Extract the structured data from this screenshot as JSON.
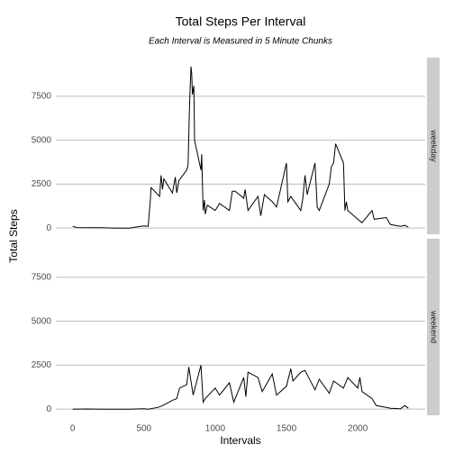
{
  "chart_data": {
    "type": "line",
    "title": "Total Steps Per Interval",
    "subtitle": "Each Interval is Measured in 5 Minute Chunks",
    "xlabel": "Intervals",
    "ylabel": "Total Steps",
    "xlim": [
      -118,
      2473
    ],
    "xticks": [
      0,
      500,
      1000,
      1500,
      2000
    ],
    "ylim": [
      -350,
      9700
    ],
    "yticks": [
      0,
      2500,
      5000,
      7500
    ],
    "grid": true,
    "series": [
      {
        "name": "weekday",
        "color": "#000000",
        "x": [
          0,
          30,
          100,
          200,
          300,
          400,
          430,
          500,
          530,
          545,
          550,
          610,
          620,
          630,
          640,
          700,
          720,
          730,
          745,
          800,
          810,
          820,
          830,
          835,
          840,
          850,
          855,
          900,
          905,
          915,
          925,
          930,
          945,
          1000,
          1030,
          1100,
          1120,
          1140,
          1200,
          1210,
          1230,
          1300,
          1320,
          1345,
          1400,
          1430,
          1500,
          1510,
          1530,
          1600,
          1615,
          1630,
          1645,
          1700,
          1715,
          1730,
          1800,
          1815,
          1830,
          1845,
          1900,
          1910,
          1920,
          1930,
          2000,
          2030,
          2100,
          2115,
          2200,
          2230,
          2300,
          2330,
          2355
        ],
        "values": [
          100,
          30,
          20,
          20,
          0,
          0,
          40,
          120,
          100,
          1600,
          2300,
          1800,
          3000,
          2200,
          2800,
          2000,
          2900,
          2000,
          2700,
          3300,
          3600,
          7000,
          9200,
          8800,
          7600,
          8100,
          5000,
          3300,
          4200,
          1000,
          1600,
          800,
          1300,
          1000,
          1400,
          1000,
          2100,
          2100,
          1700,
          2200,
          1000,
          1800,
          700,
          1900,
          1500,
          1200,
          3700,
          1500,
          1800,
          1000,
          1700,
          3000,
          1900,
          3700,
          1200,
          1000,
          2500,
          3500,
          3700,
          4800,
          3700,
          1000,
          1500,
          1000,
          500,
          300,
          1000,
          500,
          600,
          200,
          100,
          150,
          50
        ]
      },
      {
        "name": "weekend",
        "color": "#000000",
        "x": [
          0,
          100,
          200,
          300,
          400,
          500,
          530,
          600,
          630,
          700,
          730,
          750,
          800,
          815,
          830,
          845,
          900,
          915,
          930,
          1000,
          1030,
          1100,
          1130,
          1200,
          1215,
          1230,
          1300,
          1330,
          1400,
          1430,
          1500,
          1530,
          1545,
          1600,
          1630,
          1700,
          1730,
          1800,
          1830,
          1900,
          1930,
          2000,
          2015,
          2030,
          2100,
          2130,
          2200,
          2230,
          2300,
          2330,
          2355
        ],
        "values": [
          0,
          10,
          0,
          0,
          0,
          20,
          0,
          100,
          200,
          500,
          600,
          1200,
          1400,
          2400,
          1600,
          800,
          2500,
          400,
          600,
          1200,
          800,
          1500,
          400,
          1800,
          700,
          2100,
          1800,
          1000,
          2000,
          800,
          1300,
          2300,
          1600,
          2100,
          2200,
          1100,
          1700,
          900,
          1600,
          1200,
          1800,
          1200,
          1800,
          1000,
          600,
          200,
          100,
          50,
          20,
          200,
          50
        ]
      }
    ]
  }
}
